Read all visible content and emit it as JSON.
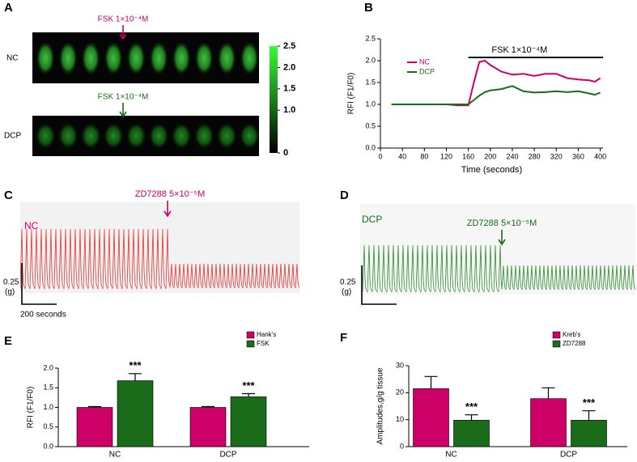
{
  "panel_labels": [
    "A",
    "B",
    "C",
    "D",
    "E",
    "F"
  ],
  "panel_a": {
    "rows": [
      "NC",
      "DCP"
    ],
    "annotation": "FSK 1×10⁻⁴M",
    "colorbar_lim": [
      0,
      2.5
    ],
    "colorbar_ticks": [
      0,
      {
        "value": 1.0,
        "label": "1.0"
      },
      1.5,
      {
        "value": 2.0,
        "label": "2.0"
      },
      2.5
    ]
  },
  "panel_c": {
    "label": "NC",
    "annotation": "ZD7288 5×10⁻⁵M",
    "scale_y": "0.25",
    "scale_y_unit": "(g)",
    "scale_x": "200 seconds"
  },
  "panel_d": {
    "label": "DCP",
    "annotation": "ZD7288 5×10⁻⁵M",
    "scale_y": "0.25",
    "scale_y_unit": "(g)"
  },
  "chart_data": [
    {
      "type": "line",
      "x_label": "Time (seconds)",
      "y_label": "RFI (F1/F0)",
      "x": [
        20,
        40,
        60,
        80,
        100,
        120,
        140,
        160,
        170,
        180,
        190,
        200,
        220,
        240,
        260,
        280,
        300,
        320,
        340,
        360,
        380,
        390,
        400
      ],
      "series": [
        {
          "name": "NC",
          "color": "#cc0066",
          "values": [
            1.0,
            1.0,
            1.0,
            1.0,
            1.0,
            1.0,
            0.98,
            0.98,
            1.5,
            1.97,
            2.0,
            1.9,
            1.75,
            1.68,
            1.7,
            1.65,
            1.7,
            1.7,
            1.6,
            1.57,
            1.55,
            1.52,
            1.6
          ]
        },
        {
          "name": "DCP",
          "color": "#1a6b1a",
          "values": [
            1.0,
            1.0,
            1.0,
            1.0,
            1.0,
            1.0,
            1.0,
            1.0,
            1.1,
            1.2,
            1.28,
            1.32,
            1.35,
            1.42,
            1.3,
            1.27,
            1.28,
            1.3,
            1.28,
            1.3,
            1.25,
            1.22,
            1.27
          ]
        }
      ],
      "xlim": [
        0,
        405
      ],
      "xticks": [
        0,
        40,
        80,
        120,
        160,
        200,
        240,
        280,
        320,
        360,
        400
      ],
      "ylim": [
        0,
        2.5
      ],
      "yticks": [
        {
          "value": 0,
          "label": "0.0"
        },
        0.5,
        {
          "value": 1.0,
          "label": "1.0"
        },
        1.5,
        {
          "value": 2.0,
          "label": "2.0"
        },
        2.5
      ],
      "annotation": "FSK 1×10⁻⁴M",
      "annotation_range": [
        160,
        405
      ]
    },
    {
      "type": "bar",
      "y_label": "RFI (F1/F0)",
      "categories": [
        "NC",
        "DCP"
      ],
      "series": [
        {
          "name": "Hank's",
          "color": "#cc0066",
          "values": [
            1.0,
            1.0
          ],
          "errors": [
            0.02,
            0.02
          ]
        },
        {
          "name": "FSK",
          "color": "#1a6b1a",
          "values": [
            1.68,
            1.27
          ],
          "errors": [
            0.18,
            0.08
          ],
          "significance": [
            "***",
            "***"
          ]
        }
      ],
      "ylim": [
        0,
        2.0
      ],
      "yticks": [
        {
          "value": 0,
          "label": "0.0"
        },
        0.5,
        {
          "value": 1.0,
          "label": "1.0"
        },
        1.5,
        {
          "value": 2.0,
          "label": "2.0"
        }
      ]
    },
    {
      "type": "bar",
      "y_label": "Amplitudes,g/g tissue",
      "categories": [
        "NC",
        "DCP"
      ],
      "series": [
        {
          "name": "Kreb's",
          "color": "#cc0066",
          "values": [
            21.5,
            17.8
          ],
          "errors": [
            4.5,
            4.0
          ]
        },
        {
          "name": "ZD7288",
          "color": "#1a6b1a",
          "values": [
            9.8,
            9.8
          ],
          "errors": [
            2.0,
            3.5
          ],
          "significance": [
            "***",
            "***"
          ]
        }
      ],
      "ylim": [
        0,
        30
      ],
      "yticks": [
        0,
        10,
        20,
        30
      ]
    }
  ]
}
